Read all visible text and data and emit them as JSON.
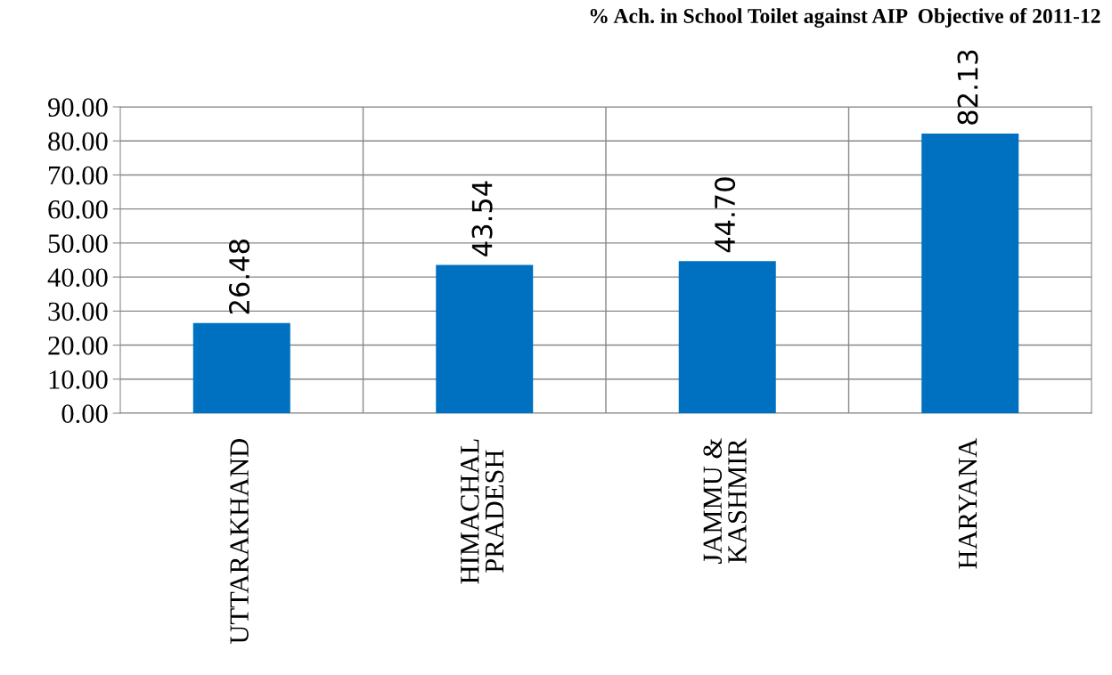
{
  "chart_data": {
    "type": "bar",
    "title": "% Ach. in School Toilet against AIP  Objective of 2011-12",
    "categories": [
      "UTTARAKHAND",
      "HIMACHAL\nPRADESH",
      "JAMMU &\nKASHMIR",
      "HARYANA"
    ],
    "values": [
      26.48,
      43.54,
      44.7,
      82.13
    ],
    "value_labels": [
      "26.48",
      "43.54",
      "44.70",
      "82.13"
    ],
    "color": "#0070c0",
    "ylim": [
      0,
      90
    ],
    "yticks": [
      {
        "value": 0,
        "label": "0.00"
      },
      {
        "value": 10,
        "label": "10.00"
      },
      {
        "value": 20,
        "label": "20.00"
      },
      {
        "value": 30,
        "label": "30.00"
      },
      {
        "value": 40,
        "label": "40.00"
      },
      {
        "value": 50,
        "label": "50.00"
      },
      {
        "value": 60,
        "label": "60.00"
      },
      {
        "value": 70,
        "label": "70.00"
      },
      {
        "value": 80,
        "label": "80.00"
      },
      {
        "value": 90,
        "label": "90.00"
      }
    ],
    "grid": true
  }
}
